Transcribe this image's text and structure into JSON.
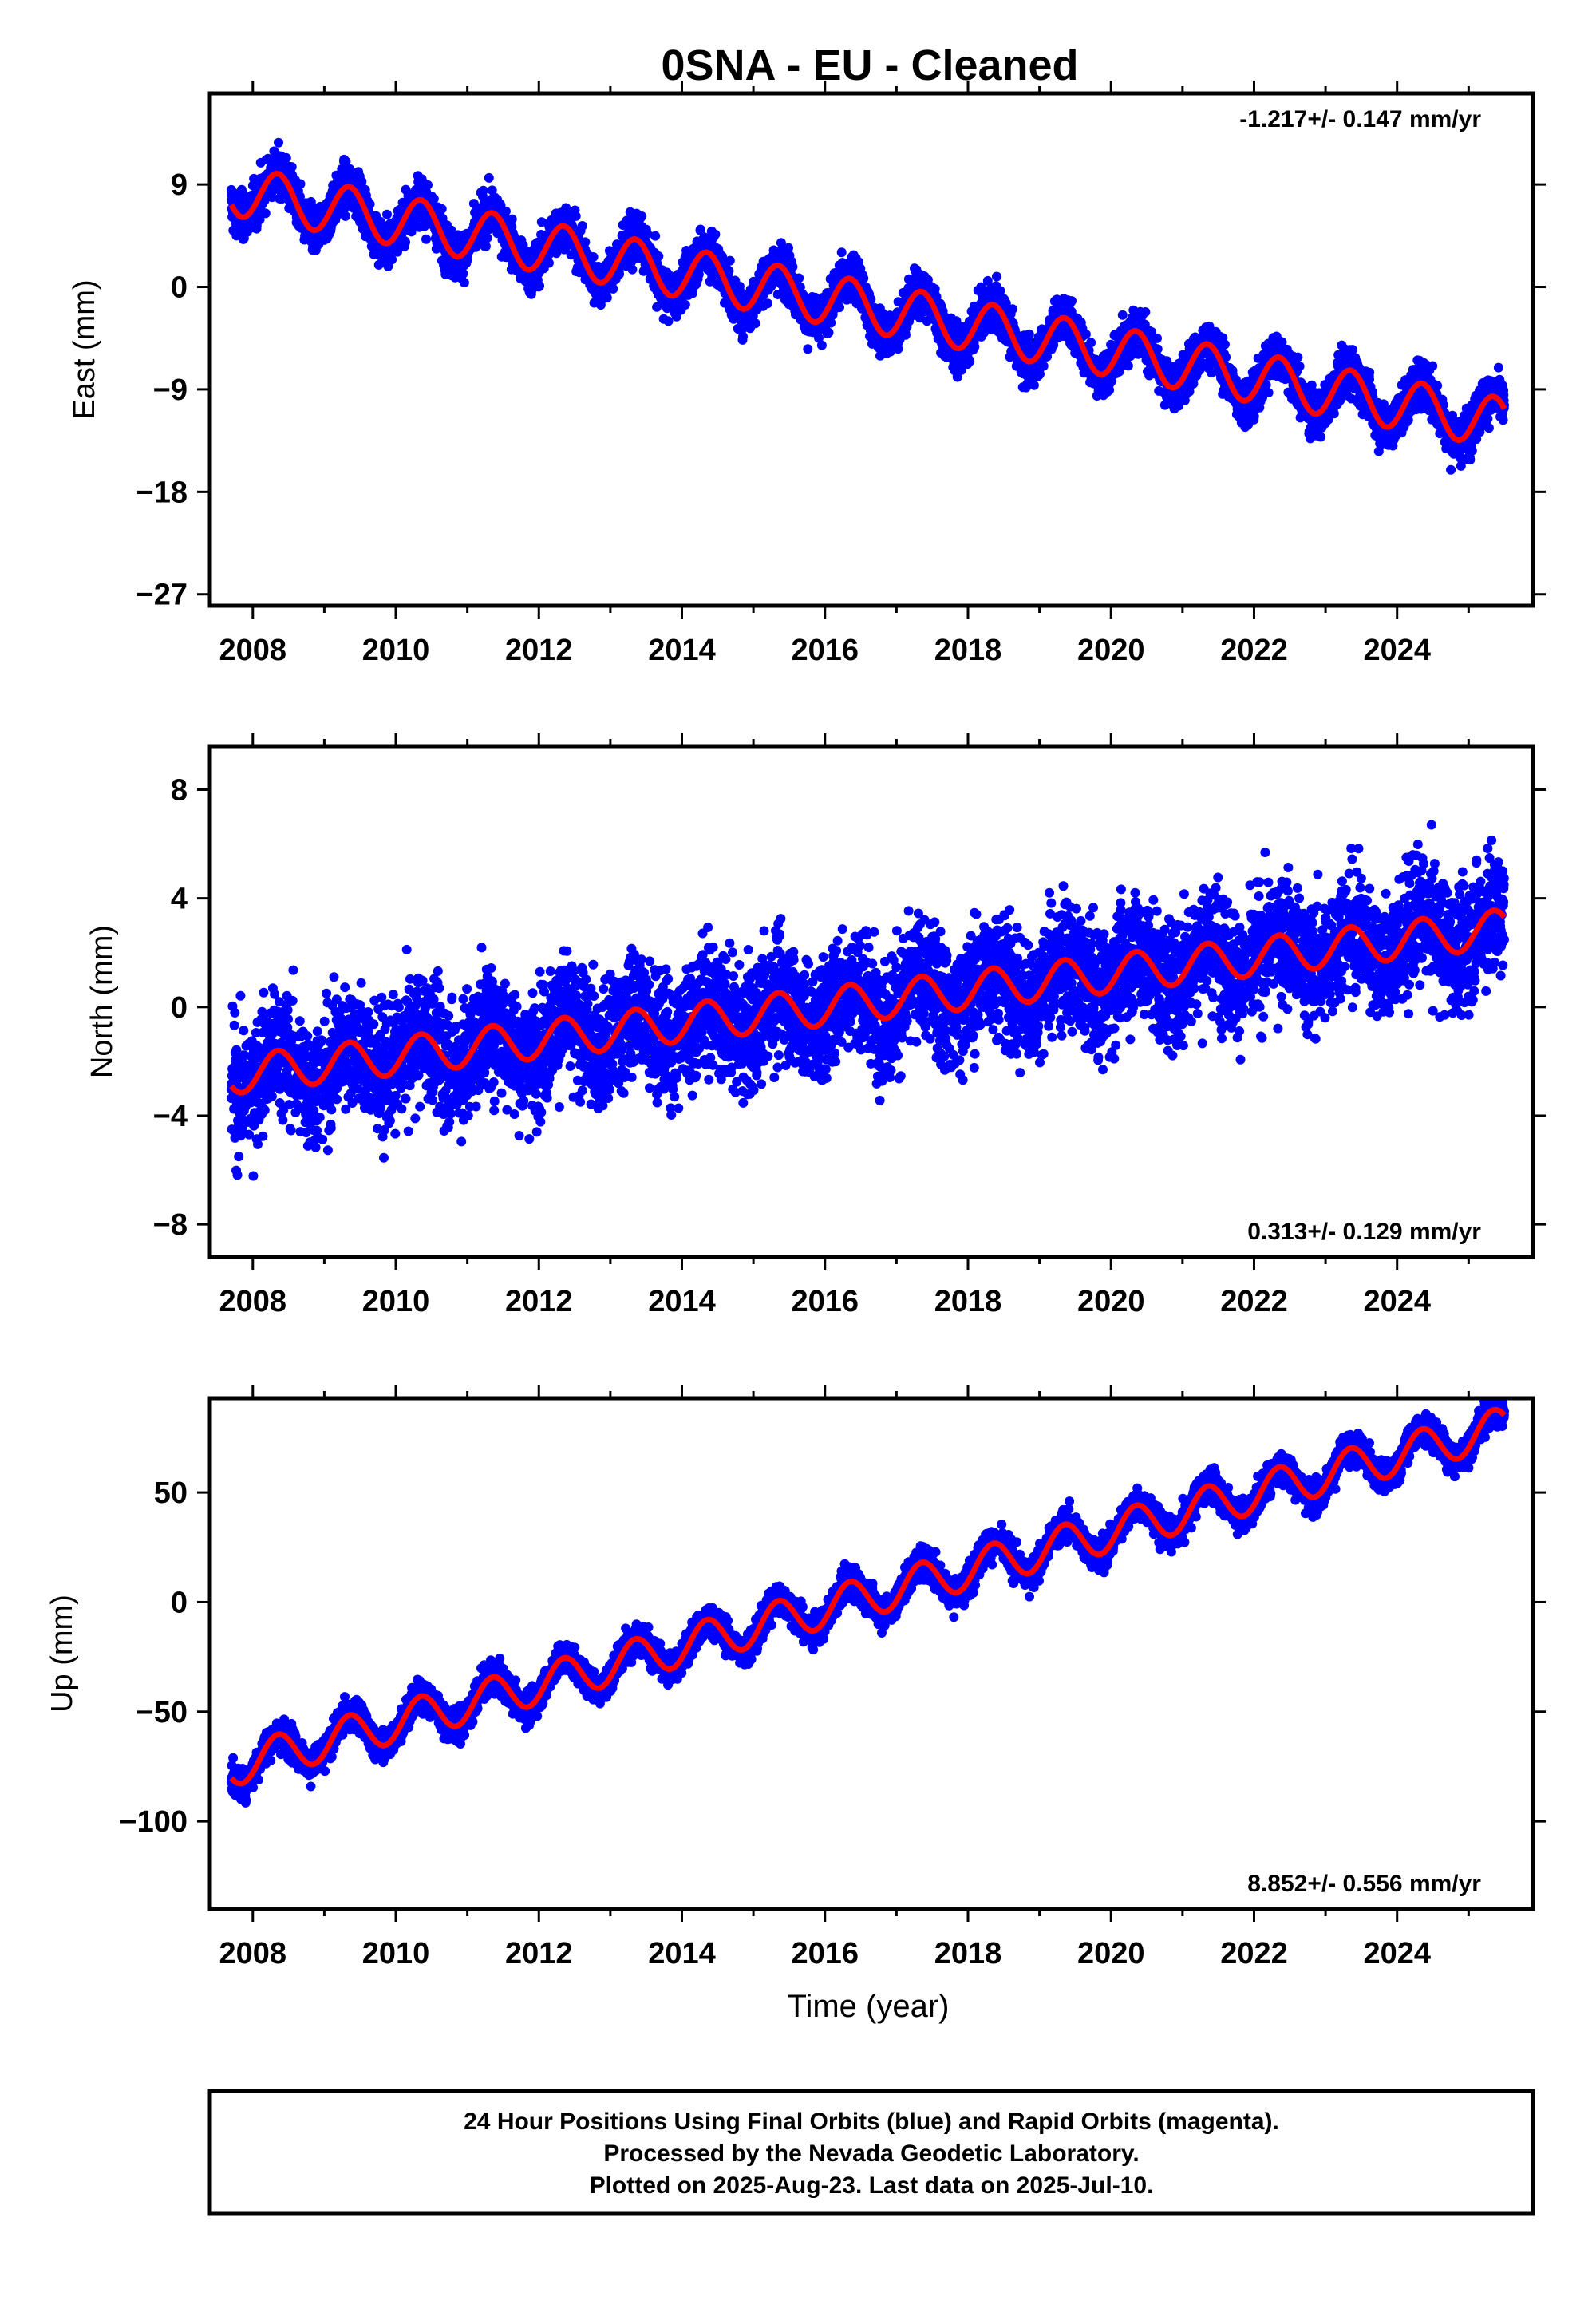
{
  "title": "0SNA  - EU - Cleaned",
  "colors": {
    "data": "#0000ff",
    "model": "#ff0000",
    "frame": "#000000"
  },
  "footer": {
    "line1": "24 Hour Positions Using Final Orbits (blue) and Rapid Orbits (magenta).",
    "line2": "Processed by the Nevada Geodetic Laboratory.",
    "line3": "Plotted on 2025-Aug-23. Last data on 2025-Jul-10."
  },
  "chart_data": [
    {
      "type": "scatter",
      "ylabel": "East (mm)",
      "xlabel": "",
      "rate_text": "-1.217+/- 0.147 mm/yr",
      "xlim": [
        2007.4,
        2025.9
      ],
      "ylim": [
        -28,
        17
      ],
      "xticks": [
        2008,
        2010,
        2012,
        2014,
        2016,
        2018,
        2020,
        2022,
        2024
      ],
      "yticks": [
        9,
        0,
        -9,
        -18,
        -27
      ],
      "ytick_labels": [
        "9",
        "0",
        "−9",
        "−18",
        "−27"
      ],
      "grid": false,
      "series": [
        {
          "role": "daily positions",
          "color": "#0000ff",
          "trend": {
            "start": [
              2007.7,
              8.5
            ],
            "end": [
              2025.5,
              -12.0
            ],
            "seasonal_amplitude": 2.2,
            "scatter": 1.4
          }
        },
        {
          "role": "model fit",
          "color": "#ff0000",
          "trend": {
            "start": [
              2007.7,
              8.5
            ],
            "end": [
              2025.5,
              -12.0
            ],
            "seasonal_amplitude": 2.2
          }
        }
      ]
    },
    {
      "type": "scatter",
      "ylabel": "North (mm)",
      "xlabel": "",
      "rate_text": "0.313+/- 0.129 mm/yr",
      "xlim": [
        2007.4,
        2025.9
      ],
      "ylim": [
        -9.2,
        9.6
      ],
      "xticks": [
        2008,
        2010,
        2012,
        2014,
        2016,
        2018,
        2020,
        2022,
        2024
      ],
      "yticks": [
        8,
        4,
        0,
        -4,
        -8
      ],
      "ytick_labels": [
        "8",
        "4",
        "0",
        "−4",
        "−8"
      ],
      "grid": false,
      "series": [
        {
          "role": "daily positions",
          "color": "#0000ff",
          "trend": {
            "start": [
              2007.7,
              -2.5
            ],
            "end": [
              2025.5,
              2.9
            ],
            "seasonal_amplitude": 0.7,
            "scatter": 1.6
          }
        },
        {
          "role": "model fit",
          "color": "#ff0000",
          "trend": {
            "start": [
              2007.7,
              -2.5
            ],
            "end": [
              2025.5,
              2.9
            ],
            "seasonal_amplitude": 0.7
          }
        }
      ]
    },
    {
      "type": "scatter",
      "ylabel": "Up (mm)",
      "xlabel": "Time (year)",
      "rate_text": "8.852+/- 0.556 mm/yr",
      "xlim": [
        2007.4,
        2025.9
      ],
      "ylim": [
        -140,
        93
      ],
      "xticks": [
        2008,
        2010,
        2012,
        2014,
        2016,
        2018,
        2020,
        2022,
        2024
      ],
      "yticks": [
        50,
        0,
        -50,
        -100
      ],
      "ytick_labels": [
        "50",
        "0",
        "−50",
        "−100"
      ],
      "grid": false,
      "series": [
        {
          "role": "daily positions",
          "color": "#0000ff",
          "trend": {
            "start": [
              2007.7,
              -75
            ],
            "end": [
              2025.5,
              80
            ],
            "seasonal_amplitude": 9,
            "scatter": 5
          }
        },
        {
          "role": "model fit",
          "color": "#ff0000",
          "trend": {
            "start": [
              2007.7,
              -75
            ],
            "end": [
              2025.5,
              80
            ],
            "seasonal_amplitude": 9
          }
        }
      ]
    }
  ]
}
